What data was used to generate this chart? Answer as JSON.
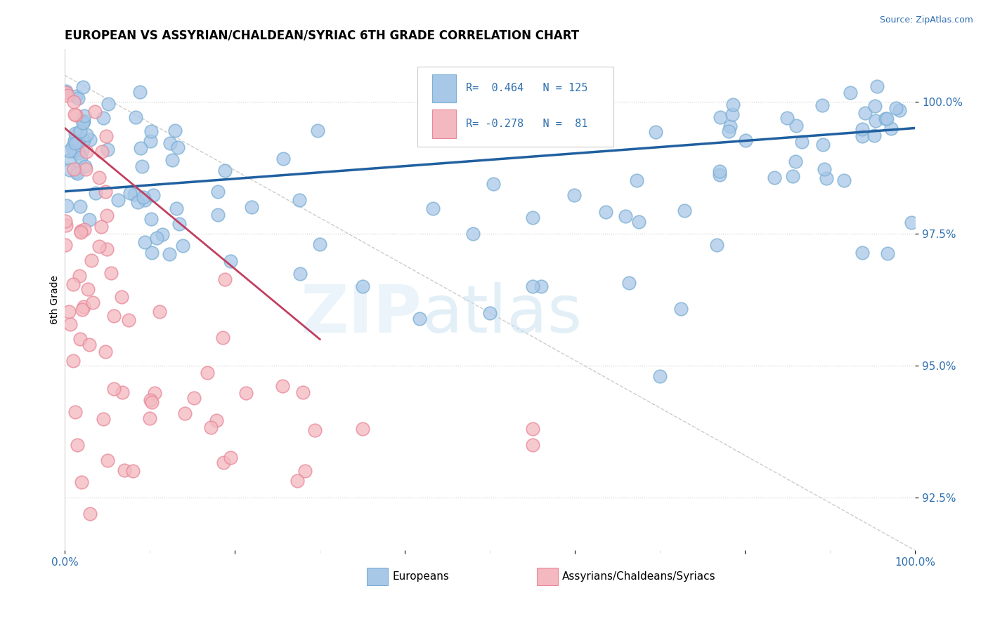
{
  "title": "EUROPEAN VS ASSYRIAN/CHALDEAN/SYRIAC 6TH GRADE CORRELATION CHART",
  "source": "Source: ZipAtlas.com",
  "ylabel": "6th Grade",
  "xlim": [
    0.0,
    100.0
  ],
  "ylim": [
    91.5,
    101.0
  ],
  "yaxis_ticks": [
    92.5,
    95.0,
    97.5,
    100.0
  ],
  "yaxis_labels": [
    "92.5%",
    "95.0%",
    "97.5%",
    "100.0%"
  ],
  "blue_color": "#a8c8e8",
  "blue_edge_color": "#7bafd4",
  "pink_color": "#f4b8c0",
  "pink_edge_color": "#e88898",
  "trend_blue_color": "#2060a0",
  "trend_pink_color": "#c04060",
  "text_color": "#3070b0",
  "legend_r_blue": "R=  0.464",
  "legend_n_blue": "N = 125",
  "legend_r_pink": "R= -0.278",
  "legend_n_pink": "N =  81"
}
